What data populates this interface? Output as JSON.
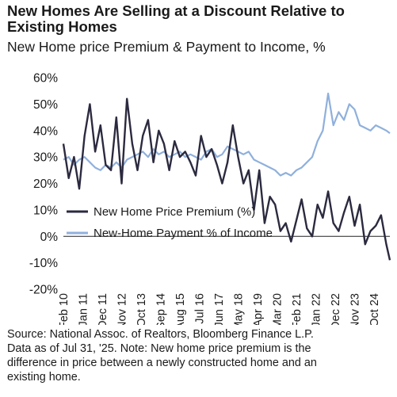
{
  "title": "New Homes Are Selling at a Discount Relative to Existing Homes",
  "subtitle": "New Home price Premium & Payment to Income, %",
  "source_lines": [
    "Source: National Assoc. of Realtors, Bloomberg Finance L.P.",
    "Data as of Jul  31, '25. Note: New home price premium is the",
    "difference in price between a newly constructed home and an",
    "existing home."
  ],
  "colors": {
    "premium": "#2b2a3f",
    "payment": "#8fb0dc",
    "axis": "#222222"
  },
  "chart_data": {
    "type": "line",
    "title": "New Homes Are Selling at a Discount Relative to Existing Homes",
    "subtitle": "New Home price Premium & Payment to Income, %",
    "ylim": [
      -20,
      60
    ],
    "yticks": [
      -20,
      -10,
      0,
      10,
      20,
      30,
      40,
      50,
      60
    ],
    "ytick_labels": [
      "-20%",
      "-10%",
      "0%",
      "10%",
      "20%",
      "30%",
      "40%",
      "50%",
      "60%"
    ],
    "xlim": [
      "Feb '10",
      "Jul '25"
    ],
    "x_tick_labels": [
      "Feb '10",
      "Jan '11",
      "Dec '11",
      "Nov '12",
      "Oct '13",
      "Sep '14",
      "Aug '15",
      "Jul '16",
      "Jun '17",
      "May '18",
      "Apr '19",
      "Mar '20",
      "Feb '21",
      "Jan '22",
      "Dec '22",
      "Nov '23",
      "Oct '24"
    ],
    "grid": false,
    "legend_position": "lower-left",
    "series": [
      {
        "name": "New Home Price Premium (%)",
        "x": [
          "Feb '10",
          "May '10",
          "Aug '10",
          "Nov '10",
          "Feb '11",
          "May '11",
          "Aug '11",
          "Nov '11",
          "Feb '12",
          "May '12",
          "Aug '12",
          "Nov '12",
          "Feb '13",
          "May '13",
          "Aug '13",
          "Nov '13",
          "Feb '14",
          "May '14",
          "Aug '14",
          "Nov '14",
          "Feb '15",
          "May '15",
          "Aug '15",
          "Nov '15",
          "Feb '16",
          "May '16",
          "Aug '16",
          "Nov '16",
          "Feb '17",
          "May '17",
          "Aug '17",
          "Nov '17",
          "Feb '18",
          "May '18",
          "Aug '18",
          "Nov '18",
          "Feb '19",
          "May '19",
          "Aug '19",
          "Nov '19",
          "Feb '20",
          "May '20",
          "Aug '20",
          "Nov '20",
          "Feb '21",
          "May '21",
          "Aug '21",
          "Nov '21",
          "Feb '22",
          "May '22",
          "Aug '22",
          "Nov '22",
          "Feb '23",
          "May '23",
          "Aug '23",
          "Nov '23",
          "Feb '24",
          "May '24",
          "Aug '24",
          "Nov '24",
          "Feb '25",
          "May '25",
          "Jul '25"
        ],
        "values": [
          35,
          22,
          30,
          18,
          38,
          50,
          32,
          42,
          27,
          25,
          45,
          20,
          52,
          35,
          25,
          38,
          44,
          28,
          40,
          35,
          25,
          36,
          30,
          32,
          28,
          23,
          38,
          30,
          33,
          27,
          20,
          28,
          42,
          30,
          20,
          25,
          10,
          25,
          5,
          15,
          12,
          2,
          5,
          -2,
          6,
          14,
          3,
          0,
          12,
          7,
          17,
          5,
          2,
          9,
          15,
          4,
          12,
          -3,
          2,
          4,
          8,
          -3,
          -9
        ]
      },
      {
        "name": "New-Home Payment % of Income",
        "x": [
          "Feb '10",
          "May '10",
          "Aug '10",
          "Nov '10",
          "Feb '11",
          "May '11",
          "Aug '11",
          "Nov '11",
          "Feb '12",
          "May '12",
          "Aug '12",
          "Nov '12",
          "Feb '13",
          "May '13",
          "Aug '13",
          "Nov '13",
          "Feb '14",
          "May '14",
          "Aug '14",
          "Nov '14",
          "Feb '15",
          "May '15",
          "Aug '15",
          "Nov '15",
          "Feb '16",
          "May '16",
          "Aug '16",
          "Nov '16",
          "Feb '17",
          "May '17",
          "Aug '17",
          "Nov '17",
          "Feb '18",
          "May '18",
          "Aug '18",
          "Nov '18",
          "Feb '19",
          "May '19",
          "Aug '19",
          "Nov '19",
          "Feb '20",
          "May '20",
          "Aug '20",
          "Nov '20",
          "Feb '21",
          "May '21",
          "Aug '21",
          "Nov '21",
          "Feb '22",
          "May '22",
          "Aug '22",
          "Nov '22",
          "Feb '23",
          "May '23",
          "Aug '23",
          "Nov '23",
          "Feb '24",
          "May '24",
          "Aug '24",
          "Nov '24",
          "Feb '25",
          "May '25",
          "Jul '25"
        ],
        "values": [
          29,
          30,
          27,
          29,
          30,
          28,
          26,
          25,
          27,
          26,
          28,
          26,
          29,
          30,
          31,
          32,
          30,
          33,
          31,
          32,
          30,
          31,
          32,
          30,
          31,
          30,
          29,
          32,
          33,
          30,
          31,
          34,
          33,
          32,
          31,
          32,
          29,
          28,
          27,
          26,
          25,
          23,
          24,
          23,
          25,
          26,
          28,
          30,
          36,
          40,
          54,
          42,
          47,
          44,
          50,
          48,
          42,
          41,
          40,
          42,
          41,
          40,
          39
        ]
      }
    ]
  }
}
